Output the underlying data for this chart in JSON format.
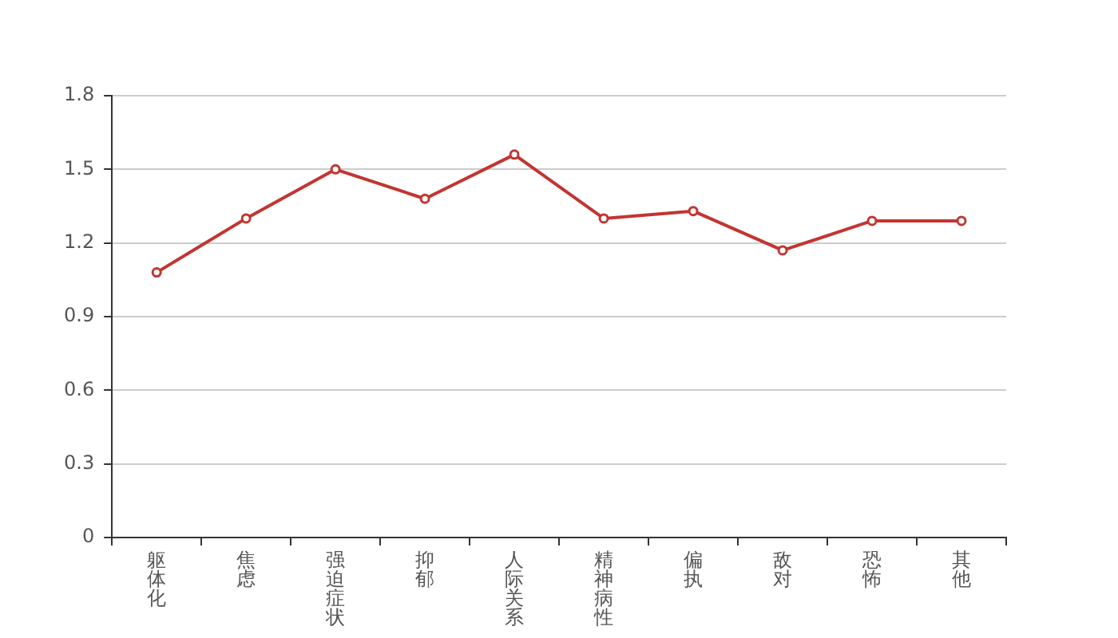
{
  "chart_data": {
    "type": "line",
    "categories": [
      "躯体化",
      "焦虑",
      "强迫症状",
      "抑郁",
      "人际关系",
      "精神病性",
      "偏执",
      "敌对",
      "恐怖",
      "其他"
    ],
    "series": [
      {
        "color": "#c23531",
        "values": [
          1.08,
          1.3,
          1.5,
          1.38,
          1.56,
          1.3,
          1.33,
          1.17,
          1.29,
          1.29
        ]
      }
    ],
    "ylim": [
      0,
      1.8
    ],
    "yticks": [
      0,
      0.3,
      0.6,
      0.9,
      1.2,
      1.5,
      1.8
    ],
    "grid": "y",
    "marker": "circle",
    "legend": false
  }
}
